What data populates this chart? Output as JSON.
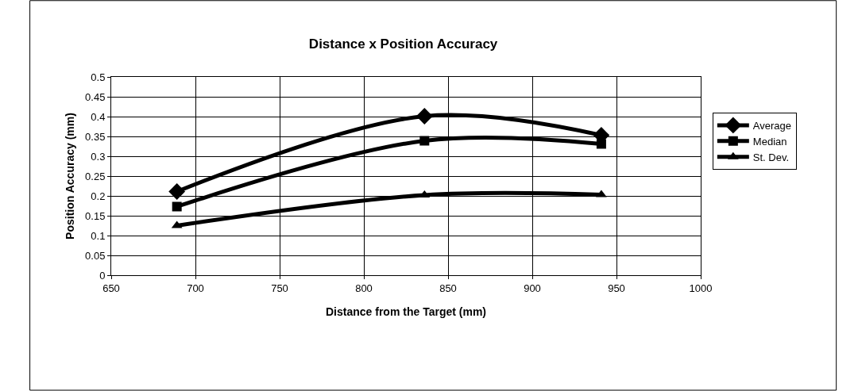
{
  "chart_data": {
    "type": "line",
    "title": "Distance x Position Accuracy",
    "xlabel": "Distance from the Target (mm)",
    "ylabel": "Position Accuracy (mm)",
    "x": [
      689,
      836,
      941
    ],
    "series": [
      {
        "name": "Average",
        "color": "#000000",
        "marker": "diamond",
        "values": [
          0.211,
          0.401,
          0.353
        ]
      },
      {
        "name": "Median",
        "color": "#000000",
        "marker": "square",
        "values": [
          0.173,
          0.339,
          0.331
        ]
      },
      {
        "name": "St. Dev.",
        "color": "#000000",
        "marker": "triangle",
        "values": [
          0.125,
          0.202,
          0.203
        ]
      }
    ],
    "xlim": [
      650,
      1000
    ],
    "xticks": [
      650,
      700,
      750,
      800,
      850,
      900,
      950,
      1000
    ],
    "ylim": [
      0,
      0.5
    ],
    "yticks": [
      0,
      0.05,
      0.1,
      0.15,
      0.2,
      0.25,
      0.3,
      0.35,
      0.4,
      0.45,
      0.5
    ],
    "grid": true,
    "legend": "right",
    "line_style": "solid"
  }
}
